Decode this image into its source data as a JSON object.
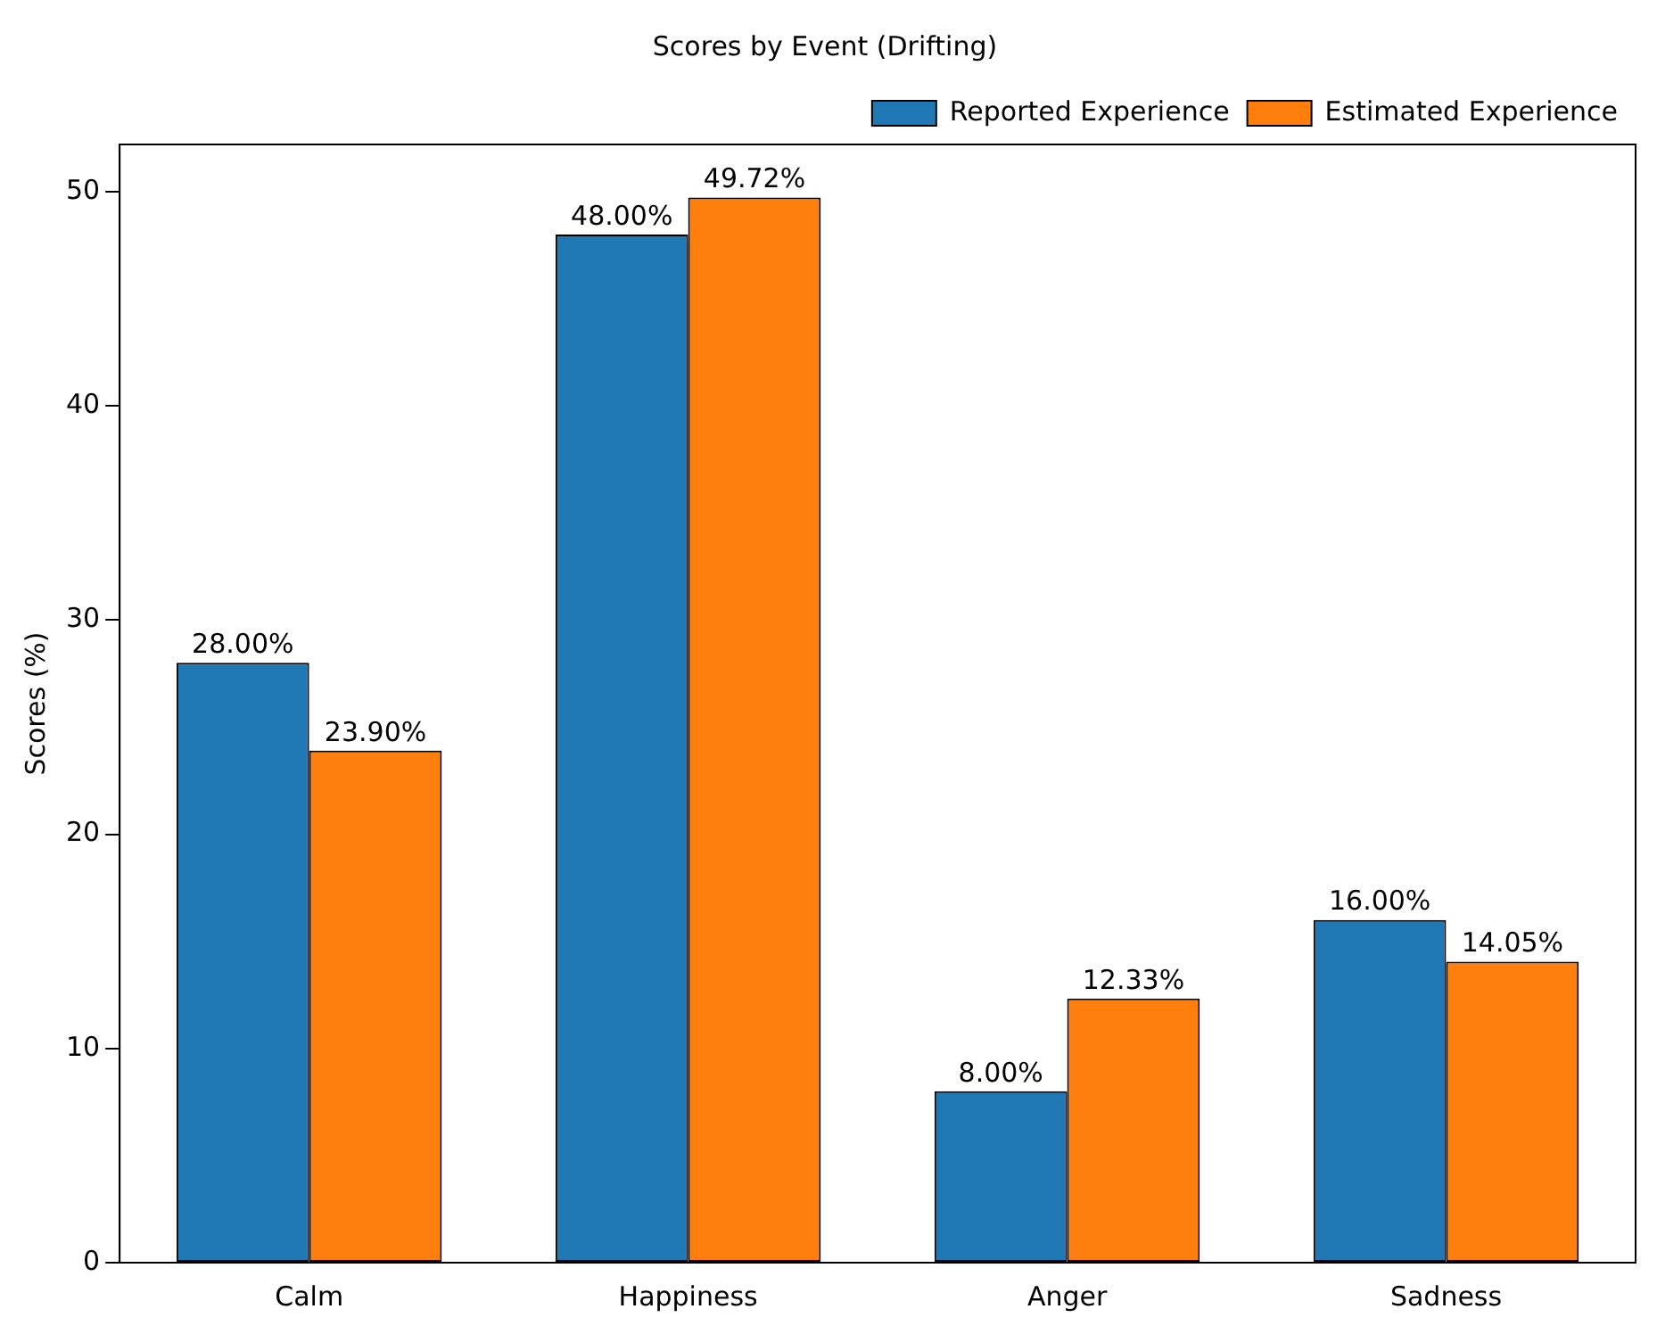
{
  "chart_data": {
    "type": "bar",
    "title": "Scores by Event (Drifting)",
    "ylabel": "Scores (%)",
    "categories": [
      "Calm",
      "Happiness",
      "Anger",
      "Sadness"
    ],
    "series": [
      {
        "name": "Reported Experience",
        "color": "#1f77b4",
        "values": [
          28.0,
          48.0,
          8.0,
          16.0
        ],
        "value_labels": [
          "28.00%",
          "48.00%",
          "8.00%",
          "16.00%"
        ]
      },
      {
        "name": "Estimated Experience",
        "color": "#ff7f0e",
        "values": [
          23.9,
          49.72,
          12.33,
          14.05
        ],
        "value_labels": [
          "23.90%",
          "49.72%",
          "12.33%",
          "14.05%"
        ]
      }
    ],
    "ylim": [
      0,
      52.2
    ],
    "yticks": [
      0,
      10,
      20,
      30,
      40,
      50
    ],
    "grid": false,
    "legend": "top right"
  }
}
